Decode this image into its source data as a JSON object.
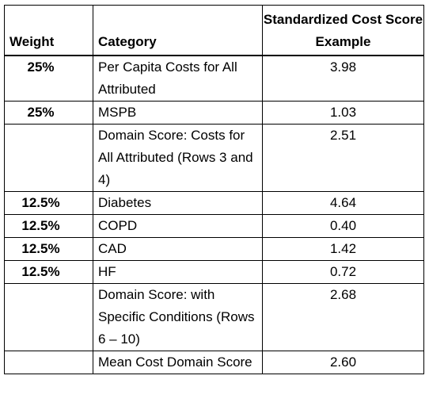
{
  "table": {
    "headers": {
      "weight": "Weight",
      "category": "Category",
      "score": "Standardized Cost Score Example"
    },
    "rows": [
      {
        "weight": "25%",
        "category": "Per Capita Costs for All Attributed",
        "score": "3.98"
      },
      {
        "weight": "25%",
        "category": "MSPB",
        "score": "1.03"
      },
      {
        "weight": "",
        "category": "Domain Score: Costs for All Attributed (Rows 3 and 4)",
        "score": "2.51"
      },
      {
        "weight": "12.5%",
        "category": "Diabetes",
        "score": "4.64"
      },
      {
        "weight": "12.5%",
        "category": "COPD",
        "score": "0.40"
      },
      {
        "weight": "12.5%",
        "category": "CAD",
        "score": "1.42"
      },
      {
        "weight": "12.5%",
        "category": "HF",
        "score": "0.72"
      },
      {
        "weight": "",
        "category": "Domain Score: with Specific Conditions (Rows 6 – 10)",
        "score": "2.68"
      },
      {
        "weight": "",
        "category": "Mean Cost Domain Score",
        "score": "2.60"
      }
    ]
  }
}
